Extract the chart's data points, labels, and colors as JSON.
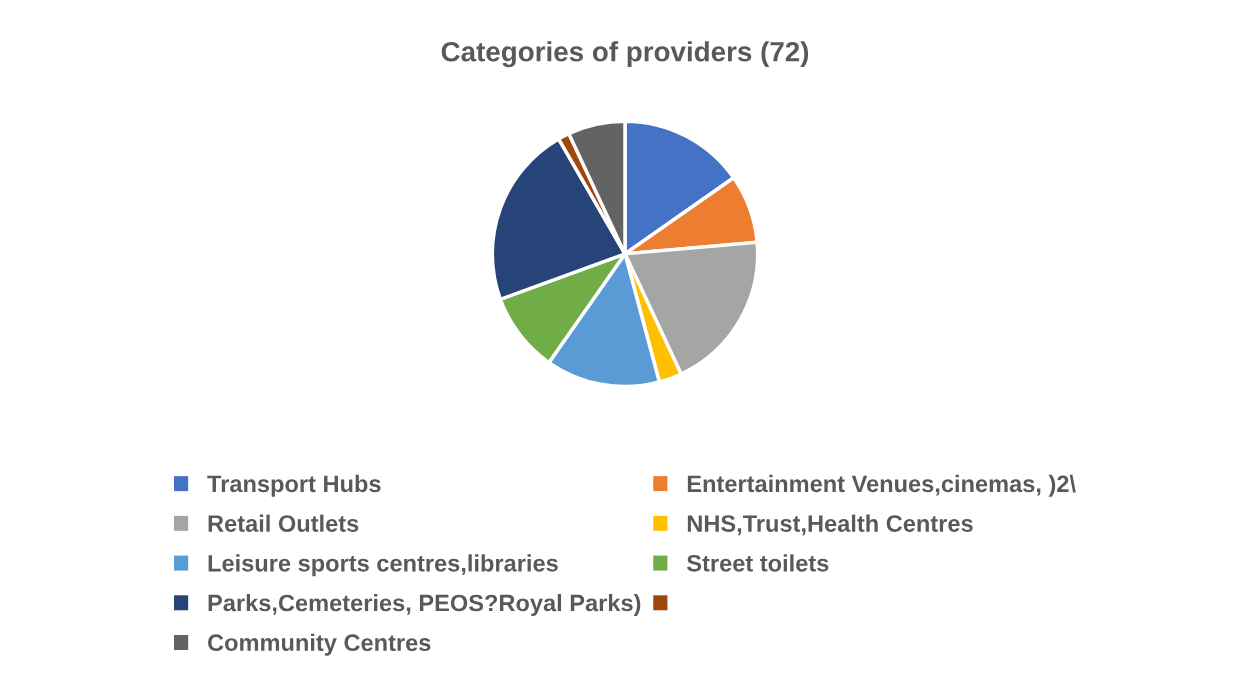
{
  "chart_data": {
    "type": "pie",
    "title": "Categories of providers (72)",
    "categories": [
      "Transport Hubs",
      "Entertainment Venues,cinemas, )2\\",
      "Retail Outlets",
      "NHS,Trust,Health Centres",
      "Leisure sports centres,libraries",
      "Street toilets",
      "Parks,Cemeteries, PEOS?Royal Parks)",
      null,
      "Community Centres"
    ],
    "values": [
      15.28,
      8.33,
      19.44,
      2.78,
      13.89,
      9.72,
      22.22,
      1.39,
      6.95
    ],
    "colors": [
      "#4472c4",
      "#ed7d31",
      "#a5a5a5",
      "#ffc000",
      "#5b9bd5",
      "#70ad47",
      "#264478",
      "#9e480e",
      "#636363"
    ],
    "legend": "bottom"
  }
}
